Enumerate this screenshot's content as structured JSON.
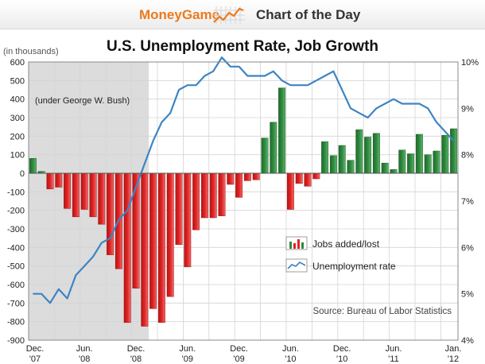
{
  "header": {
    "brand": "MoneyGame",
    "brand_icon": "rising-line-chart-icon",
    "title": "Chart of the Day"
  },
  "chart_data": {
    "type": "bar",
    "title": "U.S. Unemployment Rate, Job Growth",
    "y_left_label": "(in thousands)",
    "y_left_lim": [
      -900,
      600
    ],
    "y_left_ticks": [
      "600",
      "500",
      "400",
      "300",
      "200",
      "100",
      "0",
      "-100",
      "-200",
      "-300",
      "-400",
      "-500",
      "-600",
      "-700",
      "-800",
      "-900"
    ],
    "y_right_lim": [
      4,
      10
    ],
    "y_right_ticks": [
      "10%",
      "9%",
      "8%",
      "7%",
      "6%",
      "5%",
      "4%"
    ],
    "x_tick_labels": [
      {
        "index": 0,
        "line1": "Dec.",
        "line2": "'07"
      },
      {
        "index": 6,
        "line1": "Jun.",
        "line2": "'08"
      },
      {
        "index": 12,
        "line1": "Dec.",
        "line2": "'08"
      },
      {
        "index": 18,
        "line1": "Jun.",
        "line2": "'09"
      },
      {
        "index": 24,
        "line1": "Dec.",
        "line2": "'09"
      },
      {
        "index": 30,
        "line1": "Jun.",
        "line2": "'10"
      },
      {
        "index": 36,
        "line1": "Dec.",
        "line2": "'10"
      },
      {
        "index": 42,
        "line1": "Jun.",
        "line2": "'11"
      },
      {
        "index": 49,
        "line1": "Jan.",
        "line2": "'12"
      }
    ],
    "months": [
      "Dec '07",
      "Jan '08",
      "Feb '08",
      "Mar '08",
      "Apr '08",
      "May '08",
      "Jun '08",
      "Jul '08",
      "Aug '08",
      "Sep '08",
      "Oct '08",
      "Nov '08",
      "Dec '08",
      "Jan '09",
      "Feb '09",
      "Mar '09",
      "Apr '09",
      "May '09",
      "Jun '09",
      "Jul '09",
      "Aug '09",
      "Sep '09",
      "Oct '09",
      "Nov '09",
      "Dec '09",
      "Jan '10",
      "Feb '10",
      "Mar '10",
      "Apr '10",
      "May '10",
      "Jun '10",
      "Jul '10",
      "Aug '10",
      "Sep '10",
      "Oct '10",
      "Nov '10",
      "Dec '10",
      "Jan '11",
      "Feb '11",
      "Mar '11",
      "Apr '11",
      "May '11",
      "Jun '11",
      "Jul '11",
      "Aug '11",
      "Sep '11",
      "Oct '11",
      "Nov '11",
      "Dec '11",
      "Jan '12"
    ],
    "series": [
      {
        "name": "Jobs added/lost",
        "kind": "bar",
        "values": [
          80,
          10,
          -85,
          -75,
          -190,
          -235,
          -195,
          -235,
          -275,
          -440,
          -515,
          -805,
          -620,
          -825,
          -730,
          -805,
          -665,
          -385,
          -505,
          -305,
          -240,
          -240,
          -230,
          -60,
          -130,
          -40,
          -35,
          190,
          275,
          460,
          -195,
          -55,
          -70,
          -30,
          170,
          95,
          150,
          70,
          235,
          195,
          215,
          55,
          20,
          125,
          105,
          210,
          100,
          120,
          205,
          240
        ],
        "positive_color": "#2f8a3f",
        "negative_color": "#e02424"
      },
      {
        "name": "Unemployment rate",
        "kind": "line",
        "values": [
          5.0,
          5.0,
          4.8,
          5.1,
          4.9,
          5.4,
          5.6,
          5.8,
          6.1,
          6.2,
          6.6,
          6.8,
          7.3,
          7.8,
          8.3,
          8.7,
          8.9,
          9.4,
          9.5,
          9.5,
          9.7,
          9.8,
          10.1,
          9.9,
          9.9,
          9.7,
          9.7,
          9.7,
          9.8,
          9.6,
          9.5,
          9.5,
          9.5,
          9.6,
          9.7,
          9.8,
          9.4,
          9.0,
          8.9,
          8.8,
          9.0,
          9.1,
          9.2,
          9.1,
          9.1,
          9.1,
          9.0,
          8.7,
          8.5,
          8.3
        ],
        "color": "#3d84c4",
        "axis": "right"
      }
    ],
    "shaded_region_label": "(under George W. Bush)",
    "shaded_region_months": [
      0,
      13
    ],
    "legend_position": "lower-right",
    "source": "Source: Bureau of Labor Statistics",
    "grid": true
  }
}
